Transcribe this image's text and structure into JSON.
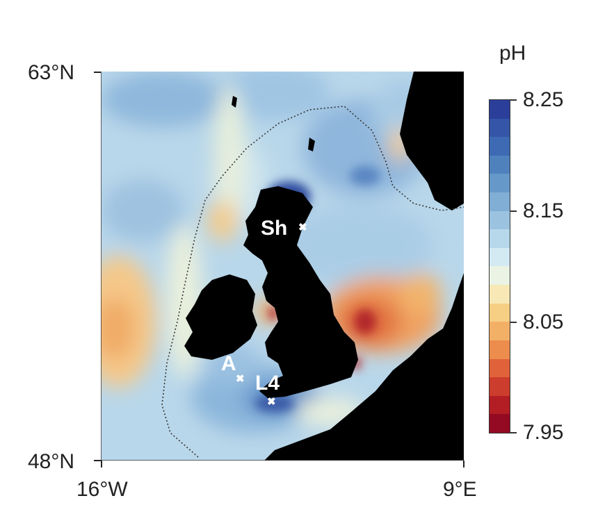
{
  "map": {
    "lat_labels": [
      "63°N",
      "48°N"
    ],
    "lon_labels": [
      "16°W",
      "9°E"
    ]
  },
  "colorbar": {
    "title": "pH",
    "tick_labels": [
      "8.25",
      "8.15",
      "8.05",
      "7.95"
    ],
    "colors": [
      "#2b3f9a",
      "#3455a8",
      "#3d6ab3",
      "#4f81bd",
      "#6699c9",
      "#80aed5",
      "#9bc3e0",
      "#b6d8ea",
      "#d3eaf2",
      "#eaf3e4",
      "#f7e8b6",
      "#f6cf85",
      "#f2b066",
      "#ec8c4d",
      "#e0623a",
      "#cc3d2d",
      "#b21e24",
      "#940a22"
    ],
    "min": 7.95,
    "max": 8.25
  },
  "sites": {
    "sh": "Sh",
    "a": "A",
    "l4": "L4"
  },
  "marker_glyph": "✖"
}
